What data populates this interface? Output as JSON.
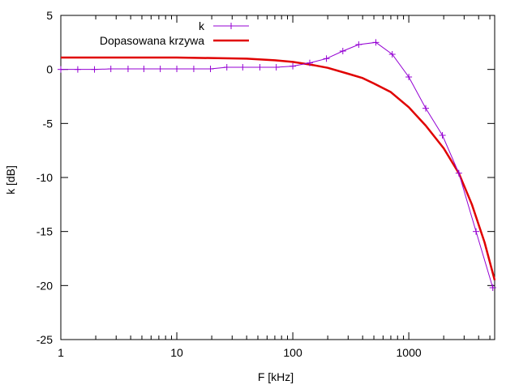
{
  "chart_data": {
    "type": "line",
    "title": "",
    "xlabel": "F [kHz]",
    "ylabel": "k [dB]",
    "xscale": "log",
    "xlim": [
      1,
      5500
    ],
    "ylim": [
      -25,
      5
    ],
    "x_ticks": [
      {
        "value": 1,
        "label": "1"
      },
      {
        "value": 10,
        "label": "10"
      },
      {
        "value": 100,
        "label": "100"
      },
      {
        "value": 1000,
        "label": "1000"
      }
    ],
    "y_ticks": [
      {
        "value": 5,
        "label": "5"
      },
      {
        "value": 0,
        "label": "0"
      },
      {
        "value": -5,
        "label": "-5"
      },
      {
        "value": -10,
        "label": "-10"
      },
      {
        "value": -15,
        "label": "-15"
      },
      {
        "value": -20,
        "label": "-20"
      },
      {
        "value": -25,
        "label": "-25"
      }
    ],
    "grid": false,
    "legend_position": "top-center",
    "series": [
      {
        "name": "k",
        "style": "linespoints",
        "color": "#9400d3",
        "marker": "plus",
        "points": [
          [
            1,
            0.0
          ],
          [
            1.4,
            0.0
          ],
          [
            1.95,
            0.0
          ],
          [
            2.7,
            0.05
          ],
          [
            3.8,
            0.05
          ],
          [
            5.2,
            0.05
          ],
          [
            7.2,
            0.05
          ],
          [
            10,
            0.05
          ],
          [
            14,
            0.05
          ],
          [
            19.5,
            0.05
          ],
          [
            27,
            0.2
          ],
          [
            37,
            0.2
          ],
          [
            52,
            0.2
          ],
          [
            72,
            0.2
          ],
          [
            100,
            0.3
          ],
          [
            140,
            0.6
          ],
          [
            195,
            1.0
          ],
          [
            270,
            1.7
          ],
          [
            370,
            2.3
          ],
          [
            520,
            2.5
          ],
          [
            720,
            1.4
          ],
          [
            1000,
            -0.7
          ],
          [
            1400,
            -3.6
          ],
          [
            1950,
            -6.1
          ],
          [
            2700,
            -9.6
          ],
          [
            3800,
            -15.0
          ],
          [
            5300,
            -20.2
          ]
        ]
      },
      {
        "name": "Dopasowana krzywa",
        "style": "lines",
        "color": "#e00000",
        "points": [
          [
            1,
            1.1
          ],
          [
            5,
            1.1
          ],
          [
            10,
            1.1
          ],
          [
            20,
            1.05
          ],
          [
            40,
            1.0
          ],
          [
            70,
            0.85
          ],
          [
            100,
            0.7
          ],
          [
            150,
            0.4
          ],
          [
            200,
            0.15
          ],
          [
            300,
            -0.4
          ],
          [
            400,
            -0.8
          ],
          [
            500,
            -1.3
          ],
          [
            700,
            -2.1
          ],
          [
            1000,
            -3.5
          ],
          [
            1400,
            -5.2
          ],
          [
            2000,
            -7.3
          ],
          [
            2700,
            -9.6
          ],
          [
            3500,
            -12.5
          ],
          [
            4500,
            -16.0
          ],
          [
            5500,
            -19.5
          ]
        ]
      }
    ]
  }
}
